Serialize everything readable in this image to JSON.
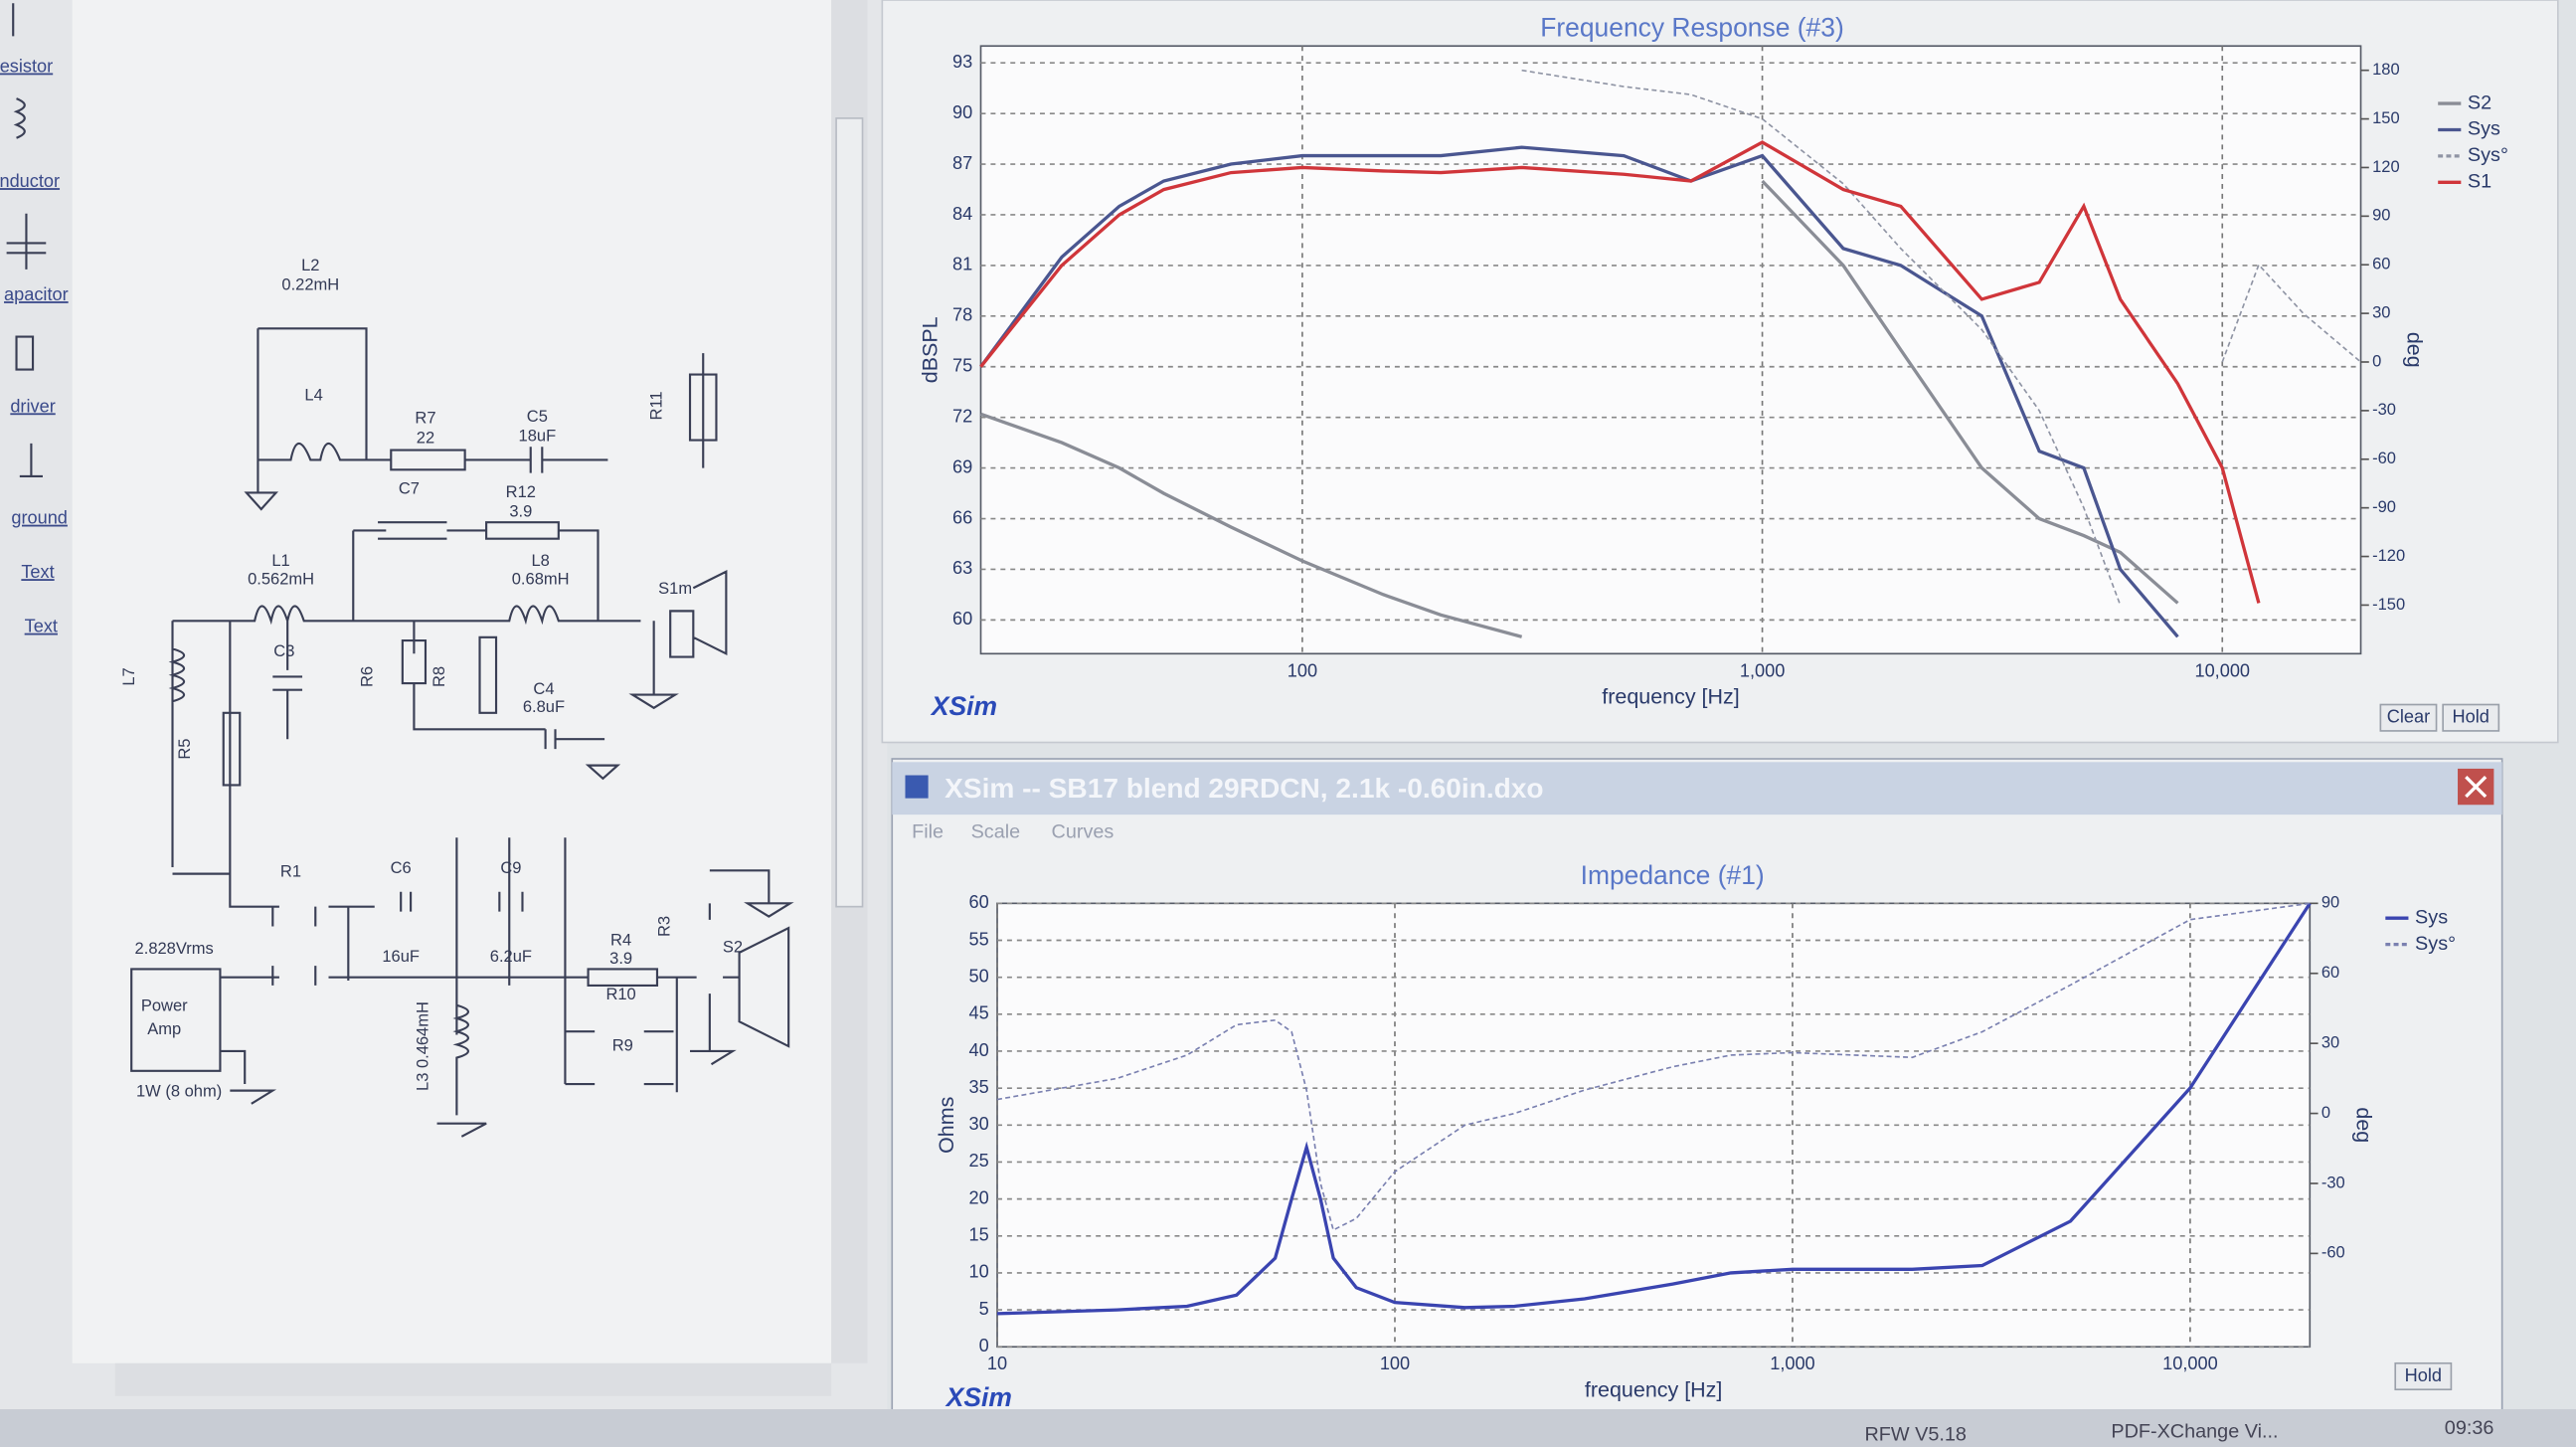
{
  "toolbar": {
    "items": [
      "esistor",
      "nductor",
      "apacitor",
      "driver",
      "ground",
      "Text",
      "Text"
    ]
  },
  "schematic": {
    "labels": {
      "l2": "L2",
      "l2_value": "0.22mH",
      "l4": "L4",
      "r7": "R7",
      "r7_value": "22",
      "c5": "C5",
      "c5_value": "18uF",
      "r11": "R11",
      "c7": "C7",
      "r12": "R12",
      "r12_value": "3.9",
      "l1": "L1",
      "l1_value": "0.562mH",
      "l8": "L8",
      "l8_value": "0.68mH",
      "s1m": "S1m",
      "c3": "C3",
      "r6": "R6",
      "r8": "R8",
      "c4": "C4",
      "c4_value": "6.8uF",
      "l7": "L7",
      "r5": "R5",
      "r1": "R1",
      "c6": "C6",
      "c9": "C9",
      "r3": "R3",
      "source": "2.828Vrms",
      "c6_value": "16uF",
      "c9_value": "6.2uF",
      "r4": "R4",
      "r4_value": "3.9",
      "r10": "R10",
      "s2": "S2",
      "amp_1": "Power",
      "amp_2": "Amp",
      "r9": "R9",
      "l3": "L3 0.464mH",
      "power": "1W (8 ohm)"
    }
  },
  "frequency_response": {
    "type": "line",
    "title": "Frequency Response (#3)",
    "xlabel": "frequency [Hz]",
    "ylabel": "dBSPL",
    "y2label": "deg",
    "logo": "XSim",
    "log_x": true,
    "x": [
      20,
      30,
      40,
      50,
      70,
      100,
      150,
      200,
      300,
      500,
      700,
      1000,
      1500,
      2000,
      3000,
      4000,
      5000,
      6000,
      8000,
      10000,
      12000,
      15000,
      20000
    ],
    "xlim": [
      20,
      20000
    ],
    "xticks": [
      100,
      {
        "value": 1000,
        "label": "1,000"
      },
      {
        "value": 10000,
        "label": "10,000"
      }
    ],
    "ylim": [
      58,
      94
    ],
    "yticks": [
      60,
      63,
      66,
      69,
      72,
      75,
      78,
      81,
      84,
      87,
      90,
      93
    ],
    "y2lim": [
      -180,
      195
    ],
    "y2ticks": [
      -150,
      -120,
      -90,
      -60,
      -30,
      0,
      30,
      60,
      90,
      120,
      150,
      180
    ],
    "series": [
      {
        "name": "S2",
        "color": "#8a8d96",
        "dashed": false,
        "values": [
          72.2,
          70.5,
          69,
          67.5,
          65.5,
          63.5,
          61.5,
          60.3,
          59,
          null,
          null,
          86,
          81,
          76,
          69,
          66,
          65,
          64,
          61,
          null,
          null,
          null,
          null
        ]
      },
      {
        "name": "Sys",
        "color": "#4a5690",
        "dashed": false,
        "values": [
          75,
          81.5,
          84.5,
          86,
          87,
          87.5,
          87.5,
          87.5,
          88,
          87.5,
          86,
          87.5,
          82,
          81,
          78,
          70,
          69,
          63,
          59,
          null,
          null,
          null,
          null
        ]
      },
      {
        "name": "Sys°",
        "color": "#8f94a4",
        "dashed": true,
        "axis": "y2",
        "values": [
          null,
          null,
          null,
          null,
          null,
          null,
          null,
          null,
          180,
          170,
          165,
          150,
          110,
          70,
          20,
          -30,
          -90,
          -150,
          null,
          0,
          60,
          30,
          0
        ]
      },
      {
        "name": "S1",
        "color": "#d0353a",
        "dashed": false,
        "values": [
          75,
          81,
          84,
          85.5,
          86.5,
          86.8,
          86.6,
          86.5,
          86.8,
          86.4,
          86,
          88.3,
          85.5,
          84.5,
          79,
          80,
          84.5,
          79,
          74,
          69,
          61,
          null,
          null
        ]
      }
    ],
    "buttons": [
      "Clear",
      "Hold"
    ]
  },
  "impedance_window": {
    "title": "XSim -- SB17 blend 29RDCN, 2.1k -0.60in.dxo",
    "menu": [
      "File",
      "Scale",
      "Curves"
    ],
    "chart": {
      "type": "line",
      "title": "Impedance (#1)",
      "xlabel": "frequency [Hz]",
      "ylabel": "Ohms",
      "y2label": "deg",
      "logo": "XSim",
      "log_x": true,
      "x": [
        10,
        20,
        30,
        40,
        50,
        55,
        60,
        65,
        70,
        80,
        100,
        150,
        200,
        300,
        500,
        700,
        1000,
        2000,
        3000,
        5000,
        10000,
        20000
      ],
      "xlim": [
        10,
        20000
      ],
      "xticks": [
        10,
        100,
        {
          "value": 1000,
          "label": "1,000"
        },
        {
          "value": 10000,
          "label": "10,000"
        }
      ],
      "ylim": [
        0,
        60
      ],
      "yticks": [
        0,
        5,
        10,
        15,
        20,
        25,
        30,
        35,
        40,
        45,
        50,
        55,
        60
      ],
      "y2lim": [
        -100,
        90
      ],
      "y2ticks": [
        -60,
        -30,
        0,
        30,
        60,
        90
      ],
      "series": [
        {
          "name": "Sys",
          "color": "#3a44b0",
          "dashed": false,
          "values": [
            4.5,
            5,
            5.5,
            7,
            12,
            20,
            27,
            20,
            12,
            8,
            6,
            5.3,
            5.5,
            6.5,
            8.5,
            10,
            10.5,
            10.5,
            11,
            17,
            35,
            60
          ]
        },
        {
          "name": "Sys°",
          "color": "#7a80b0",
          "dashed": true,
          "axis": "y2",
          "values": [
            6,
            15,
            25,
            38,
            40,
            35,
            10,
            -30,
            -50,
            -45,
            -25,
            -5,
            0,
            10,
            20,
            25,
            26,
            24,
            35,
            55,
            83,
            90
          ]
        }
      ],
      "buttons": [
        "Hold"
      ]
    }
  },
  "taskbar": {
    "items": [
      "RFW V5.18",
      "PDF-XChange Vi..."
    ],
    "clock": "09:36"
  }
}
